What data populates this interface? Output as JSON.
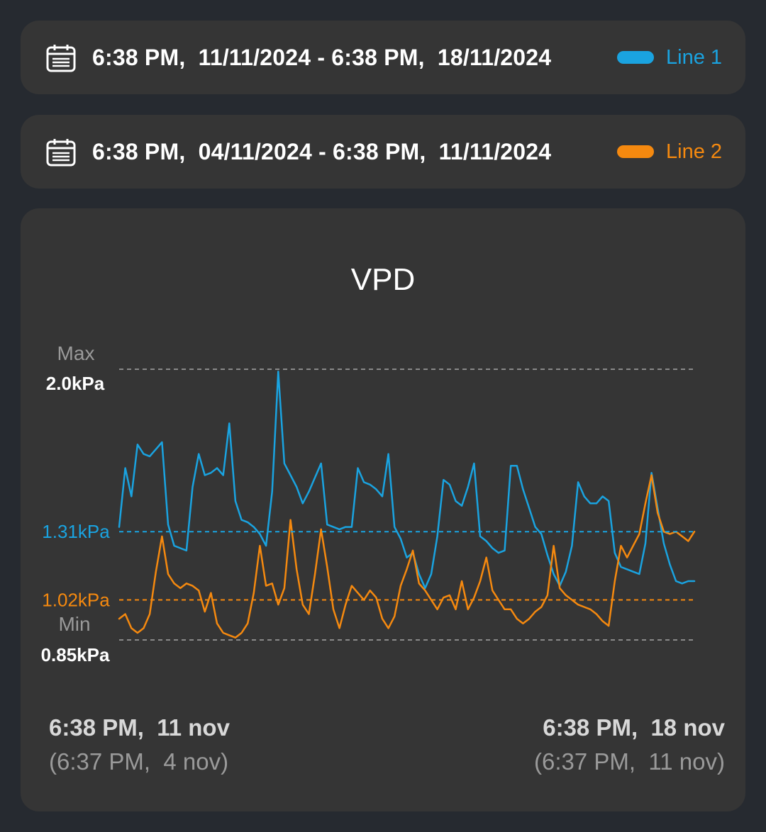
{
  "ranges": [
    {
      "text": "6:38 PM,  11/11/2024 - 6:38 PM,  18/11/2024",
      "legend": "Line 1",
      "color": "#1aa3e0"
    },
    {
      "text": "6:38 PM,  04/11/2024 - 6:38 PM,  11/11/2024",
      "legend": "Line 2",
      "color": "#f5890f"
    }
  ],
  "icons": {
    "calendar": "calendar-icon"
  },
  "chart_data": {
    "type": "line",
    "title": "VPD",
    "ylim": [
      0.85,
      2.0
    ],
    "max_label": "Max",
    "max_value": "2.0kPa",
    "min_label": "Min",
    "min_value": "0.85kPa",
    "averages": [
      {
        "series": "Line 1",
        "value": 1.31,
        "label": "1.31kPa",
        "color": "#1aa3e0"
      },
      {
        "series": "Line 2",
        "value": 1.02,
        "label": "1.02kPa",
        "color": "#f5890f"
      }
    ],
    "x_start": "6:38 PM,  11 nov",
    "x_start_prev": "(6:37 PM,  4 nov)",
    "x_end": "6:38 PM,  18 nov",
    "x_end_prev": "(6:37 PM,  11 nov)",
    "series": [
      {
        "name": "Line 1",
        "color": "#1aa3e0",
        "values": [
          1.33,
          1.58,
          1.46,
          1.68,
          1.64,
          1.63,
          1.66,
          1.69,
          1.34,
          1.25,
          1.24,
          1.23,
          1.5,
          1.64,
          1.55,
          1.56,
          1.58,
          1.55,
          1.77,
          1.44,
          1.36,
          1.35,
          1.33,
          1.3,
          1.25,
          1.48,
          1.99,
          1.6,
          1.55,
          1.5,
          1.43,
          1.48,
          1.54,
          1.6,
          1.34,
          1.33,
          1.32,
          1.33,
          1.33,
          1.58,
          1.52,
          1.51,
          1.49,
          1.46,
          1.64,
          1.33,
          1.28,
          1.2,
          1.22,
          1.13,
          1.07,
          1.13,
          1.29,
          1.53,
          1.51,
          1.44,
          1.42,
          1.5,
          1.6,
          1.29,
          1.27,
          1.24,
          1.22,
          1.23,
          1.59,
          1.59,
          1.49,
          1.41,
          1.33,
          1.3,
          1.21,
          1.13,
          1.08,
          1.14,
          1.25,
          1.52,
          1.46,
          1.43,
          1.43,
          1.46,
          1.44,
          1.22,
          1.16,
          1.15,
          1.14,
          1.13,
          1.26,
          1.56,
          1.41,
          1.26,
          1.17,
          1.1,
          1.09,
          1.1,
          1.1
        ]
      },
      {
        "name": "Line 2",
        "color": "#f5890f",
        "values": [
          0.94,
          0.96,
          0.9,
          0.88,
          0.9,
          0.96,
          1.14,
          1.29,
          1.13,
          1.09,
          1.07,
          1.09,
          1.08,
          1.06,
          0.97,
          1.05,
          0.92,
          0.88,
          0.87,
          0.86,
          0.88,
          0.92,
          1.05,
          1.25,
          1.08,
          1.09,
          1.0,
          1.07,
          1.36,
          1.15,
          1.0,
          0.96,
          1.13,
          1.32,
          1.16,
          0.98,
          0.9,
          1.0,
          1.08,
          1.05,
          1.02,
          1.06,
          1.03,
          0.94,
          0.9,
          0.95,
          1.08,
          1.15,
          1.23,
          1.09,
          1.06,
          1.02,
          0.98,
          1.03,
          1.04,
          0.98,
          1.1,
          0.98,
          1.03,
          1.1,
          1.2,
          1.06,
          1.02,
          0.98,
          0.98,
          0.94,
          0.92,
          0.94,
          0.97,
          0.99,
          1.04,
          1.25,
          1.07,
          1.04,
          1.02,
          1.0,
          0.99,
          0.98,
          0.96,
          0.93,
          0.91,
          1.1,
          1.25,
          1.2,
          1.25,
          1.3,
          1.43,
          1.55,
          1.39,
          1.31,
          1.3,
          1.31,
          1.29,
          1.27,
          1.31
        ]
      }
    ]
  }
}
